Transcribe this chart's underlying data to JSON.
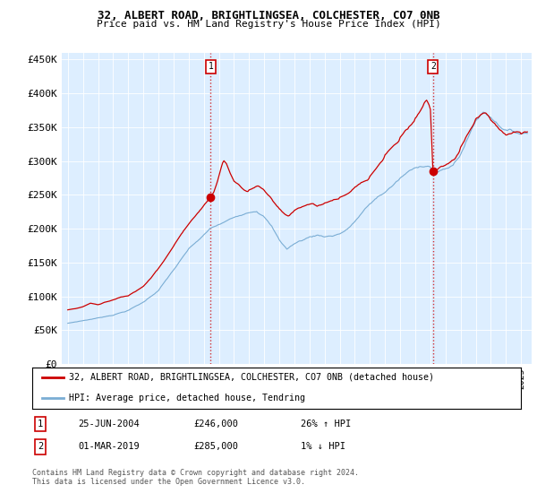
{
  "title": "32, ALBERT ROAD, BRIGHTLINGSEA, COLCHESTER, CO7 0NB",
  "subtitle": "Price paid vs. HM Land Registry's House Price Index (HPI)",
  "legend_line1": "32, ALBERT ROAD, BRIGHTLINGSEA, COLCHESTER, CO7 0NB (detached house)",
  "legend_line2": "HPI: Average price, detached house, Tendring",
  "ann1_label": "1",
  "ann1_date": "25-JUN-2004",
  "ann1_price": "£246,000",
  "ann1_pct": "26% ↑ HPI",
  "ann2_label": "2",
  "ann2_date": "01-MAR-2019",
  "ann2_price": "£285,000",
  "ann2_pct": "1% ↓ HPI",
  "footer": "Contains HM Land Registry data © Crown copyright and database right 2024.\nThis data is licensed under the Open Government Licence v3.0.",
  "red_color": "#cc0000",
  "blue_color": "#7aadd4",
  "background_color": "#ffffff",
  "plot_bg_color": "#ddeeff",
  "ylim": [
    0,
    460000
  ],
  "yticks": [
    0,
    50000,
    100000,
    150000,
    200000,
    250000,
    300000,
    350000,
    400000,
    450000
  ],
  "sale1_x": 2004.46,
  "sale1_y": 246000,
  "sale2_x": 2019.17,
  "sale2_y": 285000,
  "xmin": 1994.6,
  "xmax": 2025.7
}
